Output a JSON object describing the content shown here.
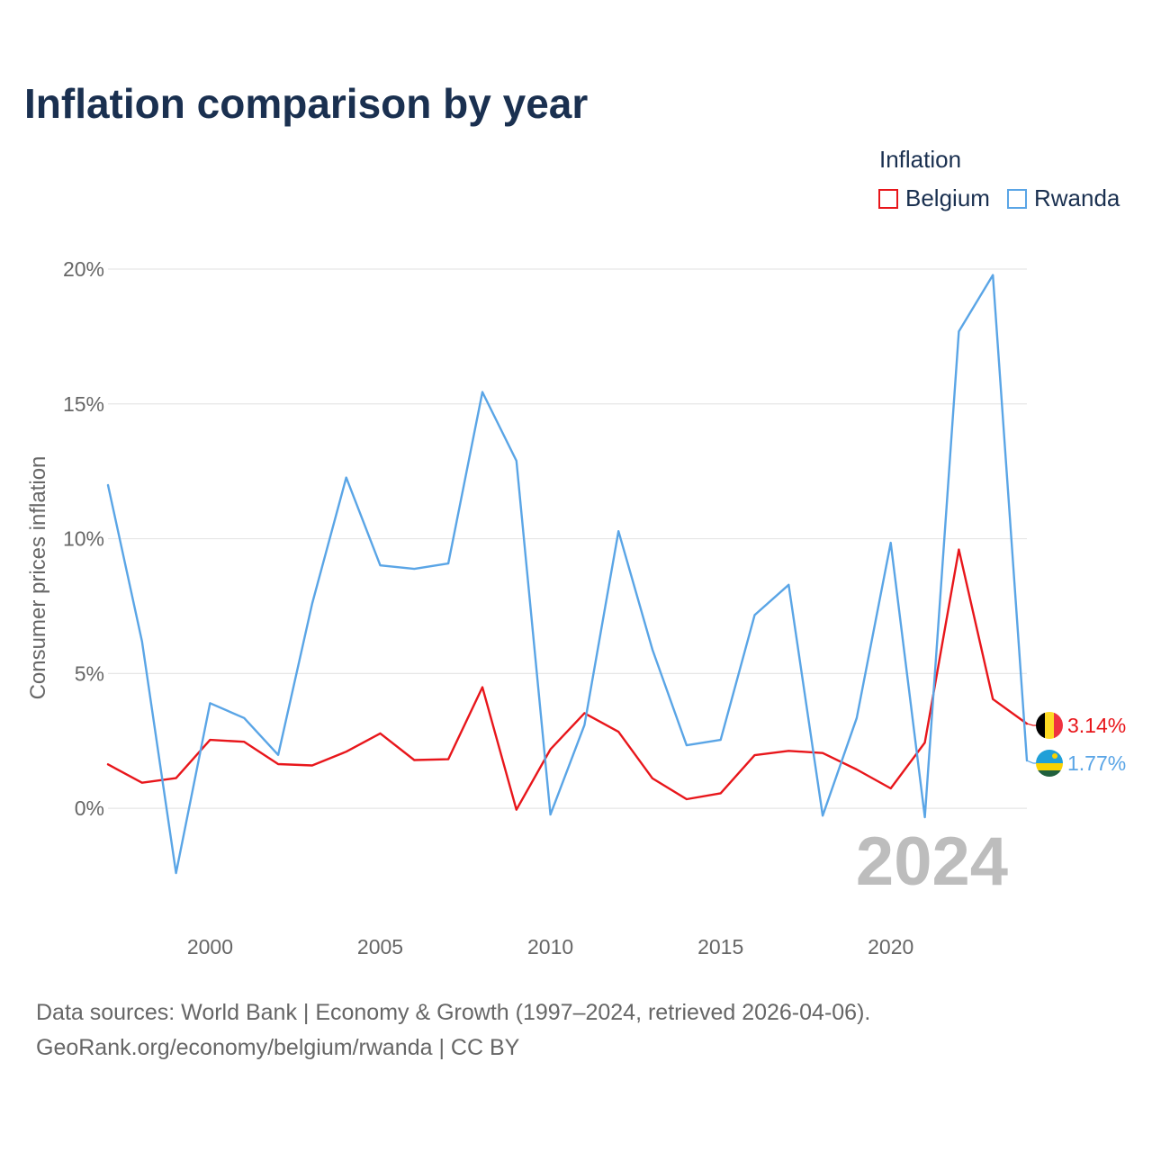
{
  "title": "Inflation comparison by year",
  "legend": {
    "title": "Inflation",
    "items": [
      {
        "label": "Belgium",
        "color": "#e8161b"
      },
      {
        "label": "Rwanda",
        "color": "#5aa5e6"
      }
    ]
  },
  "source": {
    "line1": "Data sources: World Bank | Economy & Growth (1997–2024, retrieved 2026-04-06).",
    "line2": "GeoRank.org/economy/belgium/rwanda | CC BY"
  },
  "chart_data": {
    "type": "line",
    "title": "Inflation comparison by year",
    "xlabel": "",
    "ylabel": "Consumer prices inflation",
    "x": [
      1997,
      1998,
      1999,
      2000,
      2001,
      2002,
      2003,
      2004,
      2005,
      2006,
      2007,
      2008,
      2009,
      2010,
      2011,
      2012,
      2013,
      2014,
      2015,
      2016,
      2017,
      2018,
      2019,
      2020,
      2021,
      2022,
      2023,
      2024
    ],
    "xlim": [
      1997,
      2024
    ],
    "ylim": [
      -3.9,
      20.3
    ],
    "x_ticks": [
      2000,
      2005,
      2010,
      2015,
      2020
    ],
    "x_tick_labels": [
      "2000",
      "2005",
      "2010",
      "2015",
      "2020"
    ],
    "y_ticks": [
      0,
      5,
      10,
      15,
      20
    ],
    "y_tick_labels": [
      "0%",
      "5%",
      "10%",
      "15%",
      "20%"
    ],
    "grid": true,
    "legend_position": "top-right",
    "year_annotation": "2024",
    "series": [
      {
        "name": "Belgium",
        "color": "#e8161b",
        "values": [
          1.63,
          0.95,
          1.12,
          2.54,
          2.47,
          1.64,
          1.59,
          2.1,
          2.78,
          1.79,
          1.82,
          4.49,
          -0.05,
          2.19,
          3.53,
          2.84,
          1.11,
          0.34,
          0.56,
          1.97,
          2.13,
          2.05,
          1.44,
          0.74,
          2.44,
          9.6,
          4.05,
          3.14
        ],
        "end_label": "3.14%"
      },
      {
        "name": "Rwanda",
        "color": "#5aa5e6",
        "values": [
          11.99,
          6.19,
          -2.4,
          3.9,
          3.35,
          1.98,
          7.6,
          12.27,
          9.01,
          8.88,
          9.08,
          15.44,
          12.89,
          -0.23,
          3.09,
          10.28,
          5.88,
          2.34,
          2.54,
          7.17,
          8.29,
          -0.27,
          3.35,
          9.85,
          -0.33,
          17.69,
          19.78,
          1.77
        ],
        "end_label": "1.77%"
      }
    ]
  }
}
